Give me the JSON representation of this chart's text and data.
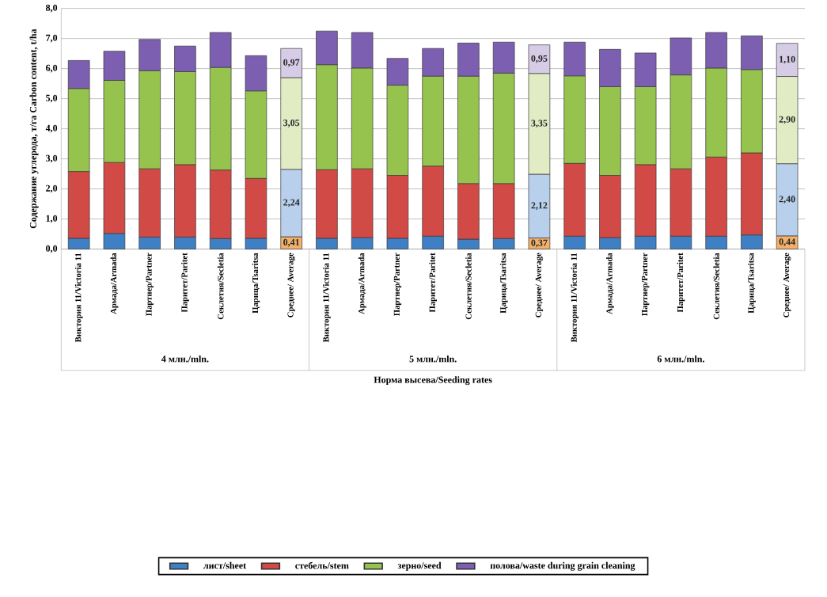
{
  "chart_data": {
    "type": "bar",
    "stacked": true,
    "ylabel": "Содержание углерода, т/га Carbon content, t/ha",
    "xlabel": "Норма высева/Seeding rates",
    "annotations": [
      "4 млн./mln.",
      "5 млн./mln.",
      "6 млн./mln."
    ],
    "categories": [
      "Виктория 11/Victoria 11",
      "Армада/Armada",
      "Партнер/Partner",
      "Паритет/Paritet",
      "Секлетия/Secletia",
      "Царица/Tsaritsa",
      "Среднее/ Average",
      "Виктория 11/Victoria 11",
      "Армада/Armada",
      "Партнер/Partner",
      "Паритет/Paritet",
      "Секлетия/Secletia",
      "Царица/Tsaritsa",
      "Среднее/ Average",
      "Виктория 11/Victoria 11",
      "Армада/Armada",
      "Партнер/Partner",
      "Паритет/Paritet",
      "Секлетия/Secletia",
      "Царица/Tsaritsa",
      "Среднее/ Average"
    ],
    "ylim": [
      0,
      8
    ],
    "yticks": [
      {
        "value": 0,
        "label": "0,0"
      },
      {
        "value": 1,
        "label": "1,0"
      },
      {
        "value": 2,
        "label": "2,0"
      },
      {
        "value": 3,
        "label": "3,0"
      },
      {
        "value": 4,
        "label": "4,0"
      },
      {
        "value": 5,
        "label": "5,0"
      },
      {
        "value": 6,
        "label": "6,0"
      },
      {
        "value": 7,
        "label": "7,0"
      },
      {
        "value": 8,
        "label": "8,0"
      }
    ],
    "grid": "y",
    "legend": "bottom",
    "series": [
      {
        "name": "лист/sheet",
        "color": "#3f7fc4",
        "colors": [
          "#3f7fc4",
          "#3f7fc4",
          "#3f7fc4",
          "#3f7fc4",
          "#3f7fc4",
          "#3f7fc4",
          "#f2b06a",
          "#3f7fc4",
          "#3f7fc4",
          "#3f7fc4",
          "#3f7fc4",
          "#3f7fc4",
          "#3f7fc4",
          "#f2b06a",
          "#3f7fc4",
          "#3f7fc4",
          "#3f7fc4",
          "#3f7fc4",
          "#3f7fc4",
          "#3f7fc4",
          "#f2b06a"
        ],
        "values": [
          0.36,
          0.52,
          0.4,
          0.4,
          0.35,
          0.36,
          0.41,
          0.36,
          0.38,
          0.36,
          0.43,
          0.33,
          0.35,
          0.37,
          0.43,
          0.38,
          0.43,
          0.43,
          0.43,
          0.47,
          0.44
        ],
        "value_labels": [
          null,
          null,
          null,
          null,
          null,
          null,
          "0,41",
          null,
          null,
          null,
          null,
          null,
          null,
          "0,37",
          null,
          null,
          null,
          null,
          null,
          null,
          "0,44"
        ]
      },
      {
        "name": "стебель/stem",
        "color": "#d24a45",
        "colors": [
          "#d24a45",
          "#d24a45",
          "#d24a45",
          "#d24a45",
          "#d24a45",
          "#d24a45",
          "#b9d0ec",
          "#d24a45",
          "#d24a45",
          "#d24a45",
          "#d24a45",
          "#d24a45",
          "#d24a45",
          "#b9d0ec",
          "#d24a45",
          "#d24a45",
          "#d24a45",
          "#d24a45",
          "#d24a45",
          "#d24a45",
          "#b9d0ec"
        ],
        "values": [
          2.22,
          2.36,
          2.27,
          2.41,
          2.28,
          1.99,
          2.24,
          2.28,
          2.29,
          2.09,
          2.33,
          1.85,
          1.83,
          2.12,
          2.42,
          2.07,
          2.38,
          2.24,
          2.63,
          2.73,
          2.4
        ],
        "value_labels": [
          null,
          null,
          null,
          null,
          null,
          null,
          "2,24",
          null,
          null,
          null,
          null,
          null,
          null,
          "2,12",
          null,
          null,
          null,
          null,
          null,
          null,
          "2,40"
        ]
      },
      {
        "name": "зерно/seed",
        "color": "#96c24e",
        "colors": [
          "#96c24e",
          "#96c24e",
          "#96c24e",
          "#96c24e",
          "#96c24e",
          "#96c24e",
          "#e2ecc4",
          "#96c24e",
          "#96c24e",
          "#96c24e",
          "#96c24e",
          "#96c24e",
          "#96c24e",
          "#e2ecc4",
          "#96c24e",
          "#96c24e",
          "#96c24e",
          "#96c24e",
          "#96c24e",
          "#96c24e",
          "#e2ecc4"
        ],
        "values": [
          2.76,
          2.73,
          3.26,
          3.09,
          3.41,
          2.91,
          3.05,
          3.49,
          3.35,
          3.0,
          2.99,
          3.57,
          3.67,
          3.35,
          2.91,
          2.95,
          2.59,
          3.12,
          2.96,
          2.77,
          2.9
        ],
        "value_labels": [
          null,
          null,
          null,
          null,
          null,
          null,
          "3,05",
          null,
          null,
          null,
          null,
          null,
          null,
          "3,35",
          null,
          null,
          null,
          null,
          null,
          null,
          "2,90"
        ]
      },
      {
        "name": "полова/waste during grain cleaning",
        "color": "#7d5fb2",
        "colors": [
          "#7d5fb2",
          "#7d5fb2",
          "#7d5fb2",
          "#7d5fb2",
          "#7d5fb2",
          "#7d5fb2",
          "#d6cce6",
          "#7d5fb2",
          "#7d5fb2",
          "#7d5fb2",
          "#7d5fb2",
          "#7d5fb2",
          "#7d5fb2",
          "#d6cce6",
          "#7d5fb2",
          "#7d5fb2",
          "#7d5fb2",
          "#7d5fb2",
          "#7d5fb2",
          "#7d5fb2",
          "#d6cce6"
        ],
        "values": [
          0.93,
          0.97,
          1.04,
          0.85,
          1.16,
          1.17,
          0.97,
          1.12,
          1.18,
          0.89,
          0.92,
          1.1,
          1.03,
          0.95,
          1.12,
          1.24,
          1.12,
          1.23,
          1.18,
          1.12,
          1.1
        ],
        "value_labels": [
          null,
          null,
          null,
          null,
          null,
          null,
          "0,97",
          null,
          null,
          null,
          null,
          null,
          null,
          "0,95",
          null,
          null,
          null,
          null,
          null,
          null,
          "1,10"
        ]
      }
    ]
  }
}
